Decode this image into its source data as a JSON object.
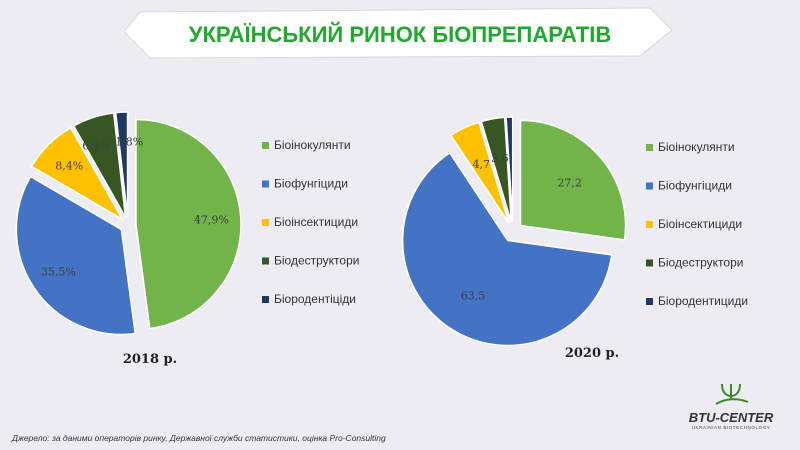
{
  "title": "УКРАЇНСЬКИЙ РИНОК БІОПРЕПАРАТІВ",
  "source": "Джерело: за даними операторів ринку, Державної служби статистики, оцінка Pro-Consulting",
  "logo": {
    "name": "BTU-CENTER",
    "subtitle": "UKRAINIAN BIOTECHNOLOGY"
  },
  "colors": {
    "bioinoculants": "#72b34a",
    "biofungicides": "#4472c4",
    "bioinsecticides": "#ffc000",
    "biodestructors": "#375623",
    "biorodenticides": "#1f3864"
  },
  "chart_data": [
    {
      "type": "pie",
      "year_label": "2018 р.",
      "legend_position": "right",
      "labels": [
        "Біоінокулянти",
        "Біофунгіциди",
        "Біоінсектициди",
        "Біодеструктори",
        "Біородентіціди"
      ],
      "values": [
        47.9,
        35.5,
        8.4,
        6.4,
        1.8
      ],
      "value_labels": [
        "47,9%",
        "35,5%",
        "8,4%",
        "6,4%",
        "1,8%"
      ]
    },
    {
      "type": "pie",
      "year_label": "2020 р.",
      "legend_position": "right",
      "labels": [
        "Біоінокулянти",
        "Біофунгіциди",
        "Біоінсектициди",
        "Біодеструктори",
        "Біородентициди"
      ],
      "values": [
        27.2,
        63.5,
        4.7,
        3.6,
        1.0
      ],
      "value_labels": [
        "27,2",
        "63,5",
        "4,7",
        "3,6",
        ""
      ]
    }
  ]
}
